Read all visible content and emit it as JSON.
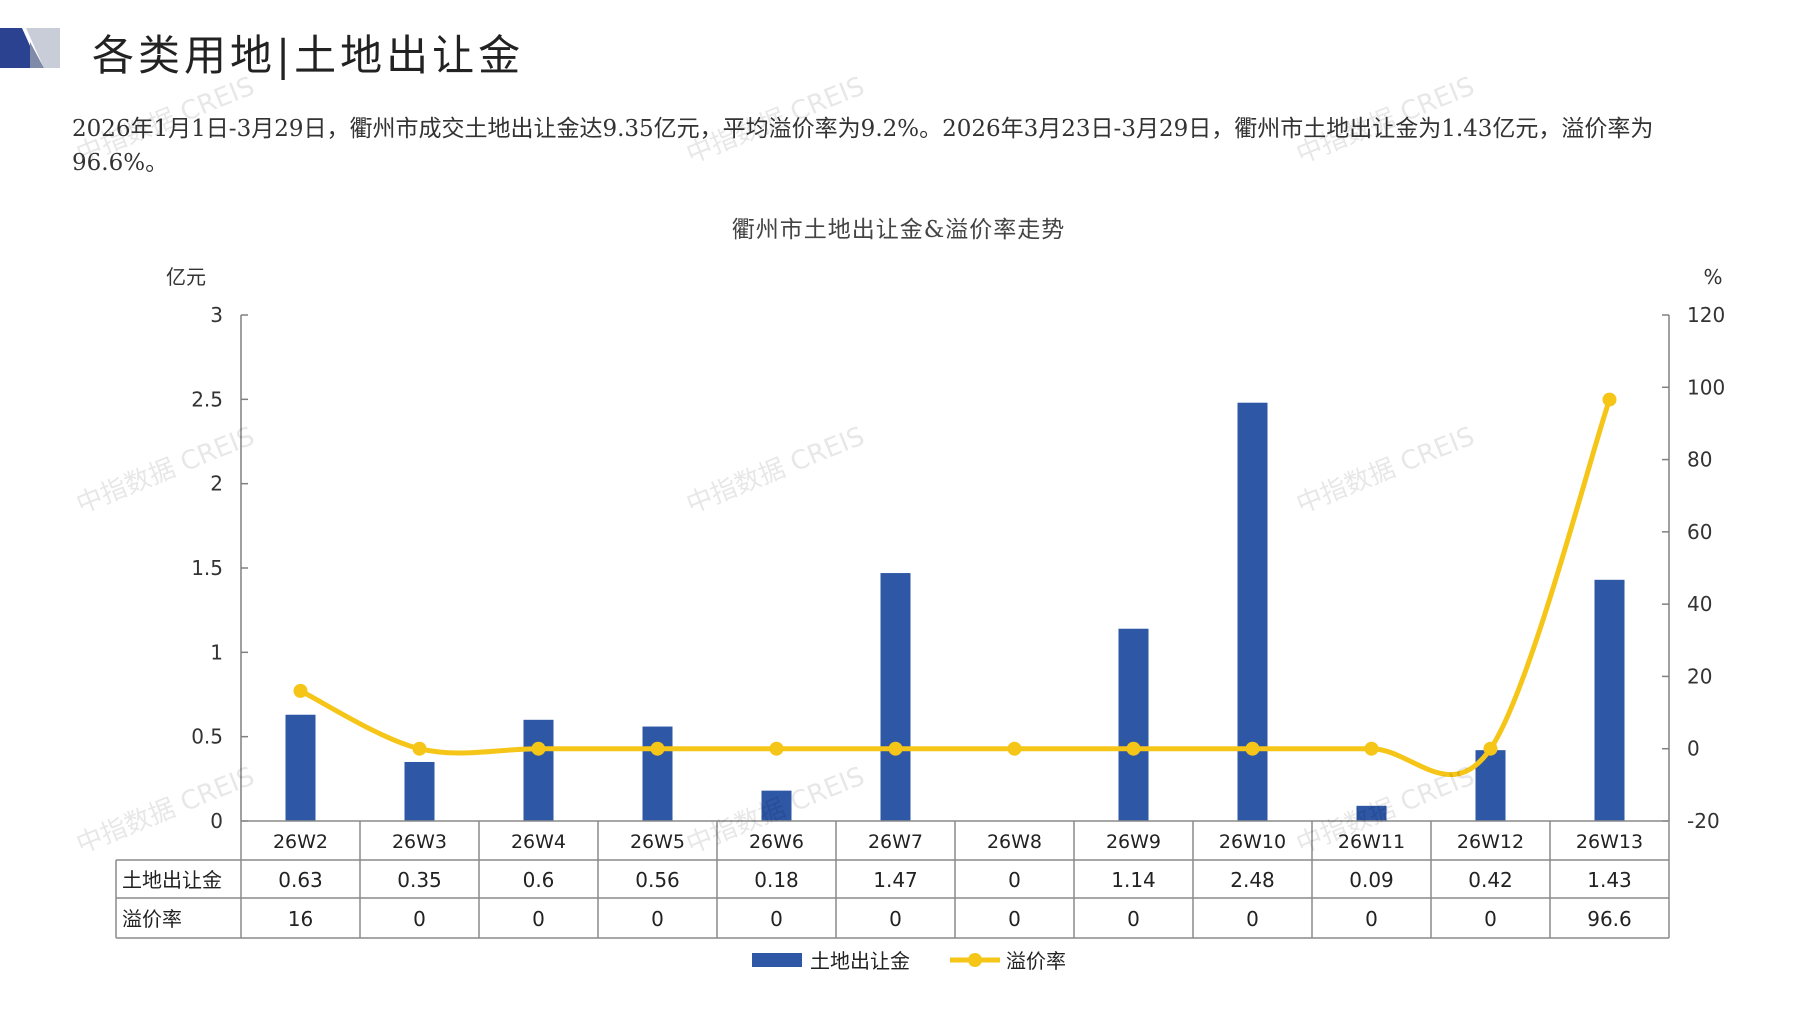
{
  "header": {
    "title": "各类用地|土地出让金",
    "summary": "2026年1月1日-3月29日，衢州市成交土地出让金达9.35亿元，平均溢价率为9.2%。2026年3月23日-3月29日，衢州市土地出让金为1.43亿元，溢价率为96.6%。"
  },
  "watermark": "中指数据 CREIS",
  "colors": {
    "bar": "#2E57A6",
    "line": "#F5C518",
    "axis": "#808080",
    "header_dark": "#2B4290",
    "header_light": "#C8CDD8"
  },
  "chart_data": {
    "type": "bar+line",
    "title": "衢州市土地出让金&溢价率走势",
    "categories": [
      "26W2",
      "26W3",
      "26W4",
      "26W5",
      "26W6",
      "26W7",
      "26W8",
      "26W9",
      "26W10",
      "26W11",
      "26W12",
      "26W13"
    ],
    "series": [
      {
        "name": "土地出让金",
        "type": "bar",
        "axis": "left",
        "values": [
          0.63,
          0.35,
          0.6,
          0.56,
          0.18,
          1.47,
          0,
          1.14,
          2.48,
          0.09,
          0.42,
          1.43
        ],
        "labels": [
          "0.63",
          "0.35",
          "0.6",
          "0.56",
          "0.18",
          "1.47",
          "0",
          "1.14",
          "2.48",
          "0.09",
          "0.42",
          "1.43"
        ]
      },
      {
        "name": "溢价率",
        "type": "line",
        "axis": "right",
        "smooth": true,
        "values": [
          16,
          0,
          0,
          0,
          0,
          0,
          0,
          0,
          0,
          0,
          0,
          96.6
        ],
        "labels": [
          "16",
          "0",
          "0",
          "0",
          "0",
          "0",
          "0",
          "0",
          "0",
          "0",
          "0",
          "96.6"
        ]
      }
    ],
    "y_left": {
      "label": "亿元",
      "ylim": [
        0,
        3
      ],
      "ticks": [
        "0",
        "0.5",
        "1",
        "1.5",
        "2",
        "2.5",
        "3"
      ]
    },
    "y_right": {
      "label": "%",
      "ylim": [
        -20,
        120
      ],
      "ticks": [
        "-20",
        "0",
        "20",
        "40",
        "60",
        "80",
        "100",
        "120"
      ]
    },
    "data_table": true,
    "legend_position": "bottom"
  }
}
